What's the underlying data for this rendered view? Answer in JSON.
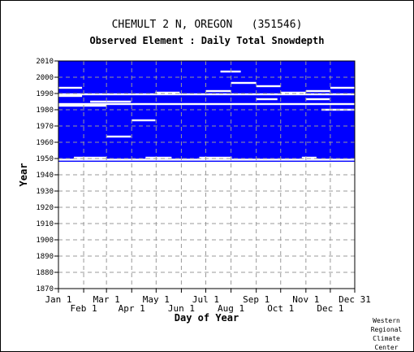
{
  "chart_data": {
    "type": "heatmap",
    "title": "CHEMULT 2 N, OREGON   (351546)",
    "subtitle": "Observed Element : Daily Total Snowdepth",
    "xlabel": "Day of Year",
    "ylabel": "Year",
    "ylim": [
      1870,
      2010
    ],
    "xlim_day": [
      1,
      365
    ],
    "y_ticks": [
      1870,
      1880,
      1890,
      1900,
      1910,
      1920,
      1930,
      1940,
      1950,
      1960,
      1970,
      1980,
      1990,
      2000,
      2010
    ],
    "x_ticks_top_row": [
      {
        "label": "Jan 1",
        "day": 1
      },
      {
        "label": "Mar 1",
        "day": 60
      },
      {
        "label": "May 1",
        "day": 121
      },
      {
        "label": "Jul 1",
        "day": 182
      },
      {
        "label": "Sep 1",
        "day": 244
      },
      {
        "label": "Nov 1",
        "day": 305
      },
      {
        "label": "Dec 31",
        "day": 365
      }
    ],
    "x_ticks_bottom_row": [
      {
        "label": "Feb 1",
        "day": 32
      },
      {
        "label": "Apr 1",
        "day": 91
      },
      {
        "label": "Jun 1",
        "day": 152
      },
      {
        "label": "Aug 1",
        "day": 213
      },
      {
        "label": "Oct 1",
        "day": 274
      },
      {
        "label": "Dec 1",
        "day": 335
      }
    ],
    "grid": true,
    "record_years": [
      1948,
      2010
    ],
    "colors": {
      "observed": "#0000ff",
      "missing": "#ffffff",
      "grid": "#999999"
    },
    "missing_spans": [
      {
        "year": 1949.3,
        "from": 1,
        "to": 365
      },
      {
        "year": 1950.5,
        "from": 20,
        "to": 60
      },
      {
        "year": 1950.5,
        "from": 108,
        "to": 140
      },
      {
        "year": 1950.5,
        "from": 174,
        "to": 214
      },
      {
        "year": 1950.5,
        "from": 300,
        "to": 318
      },
      {
        "year": 1963.5,
        "from": 60,
        "to": 90
      },
      {
        "year": 1973.5,
        "from": 91,
        "to": 120
      },
      {
        "year": 1980.0,
        "from": 324,
        "to": 365
      },
      {
        "year": 1982.5,
        "from": 1,
        "to": 60
      },
      {
        "year": 1983.5,
        "from": 1,
        "to": 365
      },
      {
        "year": 1985.0,
        "from": 40,
        "to": 90
      },
      {
        "year": 1986.5,
        "from": 244,
        "to": 270
      },
      {
        "year": 1986.5,
        "from": 305,
        "to": 334
      },
      {
        "year": 1988.5,
        "from": 1,
        "to": 30
      },
      {
        "year": 1989.5,
        "from": 1,
        "to": 365
      },
      {
        "year": 1990.5,
        "from": 120,
        "to": 150
      },
      {
        "year": 1990.5,
        "from": 274,
        "to": 305
      },
      {
        "year": 1991.5,
        "from": 182,
        "to": 213
      },
      {
        "year": 1991.5,
        "from": 305,
        "to": 335
      },
      {
        "year": 1993.5,
        "from": 1,
        "to": 30
      },
      {
        "year": 1993.5,
        "from": 335,
        "to": 365
      },
      {
        "year": 1994.5,
        "from": 244,
        "to": 274
      },
      {
        "year": 1996.5,
        "from": 213,
        "to": 244
      },
      {
        "year": 2003.5,
        "from": 200,
        "to": 225
      }
    ]
  },
  "credit": [
    "Western",
    "Regional",
    "Climate",
    "Center"
  ]
}
